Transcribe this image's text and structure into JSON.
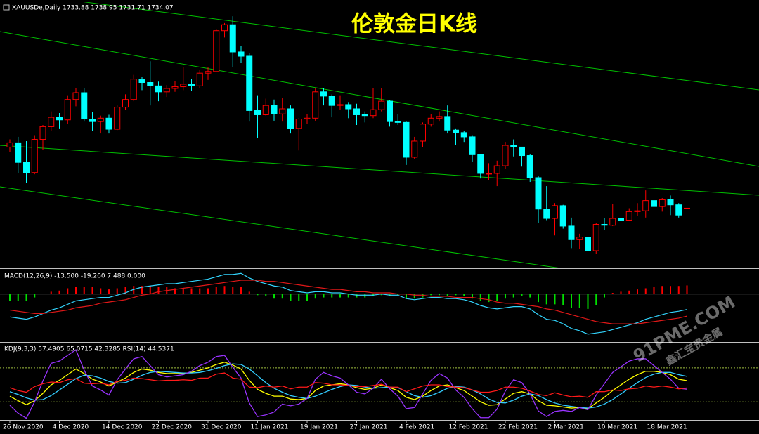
{
  "chart_data": [
    {
      "type": "candlestick",
      "title": "伦敦金日K线",
      "label": "XAUUSDe,Daily  1733.88 1738.95 1731.71 1734.07",
      "categories": [
        "26 Nov 2020",
        null,
        null,
        null,
        null,
        null,
        "4 Dec 2020",
        null,
        null,
        null,
        null,
        null,
        "14 Dec 2020",
        null,
        null,
        null,
        null,
        null,
        "22 Dec 2020",
        null,
        null,
        null,
        null,
        null,
        "31 Dec 2020",
        null,
        null,
        null,
        null,
        null,
        "11 Jan 2021",
        null,
        null,
        null,
        null,
        null,
        "19 Jan 2021",
        null,
        null,
        null,
        null,
        null,
        "27 Jan 2021",
        null,
        null,
        null,
        null,
        null,
        "4 Feb 2021",
        null,
        null,
        null,
        null,
        null,
        "12 Feb 2021",
        null,
        null,
        null,
        null,
        null,
        "22 Feb 2021",
        null,
        null,
        null,
        null,
        null,
        "2 Mar 2021",
        null,
        null,
        null,
        null,
        null,
        "10 Mar 2021",
        null,
        null,
        null,
        null,
        null,
        "18 Mar 2021",
        null,
        null,
        null,
        null
      ],
      "open": [
        1806,
        1811,
        1788,
        1776,
        1815,
        1830,
        1841,
        1838,
        1862,
        1870,
        1839,
        1836,
        1840,
        1827,
        1853,
        1862,
        1886,
        1882,
        1878,
        1871,
        1875,
        1877,
        1880,
        1878,
        1893,
        1895,
        1943,
        1950,
        1918,
        1913,
        1849,
        1844,
        1855,
        1845,
        1851,
        1828,
        1839,
        1840,
        1871,
        1866,
        1855,
        1856,
        1851,
        1844,
        1843,
        1850,
        1860,
        1836,
        1835,
        1794,
        1813,
        1833,
        1840,
        1842,
        1826,
        1823,
        1818,
        1797,
        1775,
        1775,
        1784,
        1808,
        1806,
        1796,
        1770,
        1733,
        1722,
        1737,
        1713,
        1697,
        1700,
        1684,
        1715,
        1714,
        1722,
        1720,
        1730,
        1731,
        1743,
        1736,
        1744,
        1738,
        1733.88
      ],
      "high": [
        1815,
        1818,
        1813,
        1820,
        1832,
        1848,
        1846,
        1867,
        1875,
        1875,
        1847,
        1843,
        1844,
        1855,
        1868,
        1891,
        1889,
        1907,
        1883,
        1879,
        1884,
        1900,
        1886,
        1897,
        1900,
        1945,
        1952,
        1960,
        1925,
        1917,
        1867,
        1863,
        1862,
        1864,
        1855,
        1840,
        1845,
        1875,
        1875,
        1868,
        1867,
        1859,
        1857,
        1848,
        1875,
        1875,
        1861,
        1845,
        1836,
        1818,
        1835,
        1845,
        1848,
        1855,
        1828,
        1825,
        1820,
        1798,
        1787,
        1790,
        1812,
        1815,
        1806,
        1798,
        1772,
        1760,
        1740,
        1738,
        1723,
        1704,
        1704,
        1717,
        1722,
        1739,
        1729,
        1734,
        1740,
        1755,
        1746,
        1746,
        1749,
        1740,
        1738.95
      ],
      "low": [
        1800,
        1775,
        1764,
        1774,
        1803,
        1825,
        1828,
        1833,
        1854,
        1836,
        1825,
        1822,
        1822,
        1826,
        1850,
        1860,
        1873,
        1855,
        1860,
        1865,
        1871,
        1873,
        1872,
        1875,
        1885,
        1895,
        1935,
        1900,
        1905,
        1836,
        1817,
        1843,
        1837,
        1836,
        1822,
        1802,
        1833,
        1837,
        1855,
        1841,
        1850,
        1840,
        1832,
        1835,
        1840,
        1848,
        1830,
        1832,
        1785,
        1792,
        1806,
        1830,
        1836,
        1822,
        1808,
        1812,
        1789,
        1769,
        1767,
        1760,
        1780,
        1795,
        1783,
        1765,
        1717,
        1720,
        1702,
        1710,
        1687,
        1686,
        1676,
        1680,
        1708,
        1713,
        1699,
        1719,
        1725,
        1723,
        1730,
        1730,
        1726,
        1723,
        1731.71
      ],
      "close": [
        1811,
        1788,
        1776,
        1815,
        1830,
        1841,
        1838,
        1862,
        1870,
        1839,
        1836,
        1840,
        1827,
        1853,
        1862,
        1886,
        1882,
        1878,
        1871,
        1875,
        1877,
        1880,
        1878,
        1893,
        1895,
        1943,
        1950,
        1918,
        1913,
        1849,
        1844,
        1855,
        1845,
        1851,
        1828,
        1839,
        1840,
        1871,
        1866,
        1855,
        1856,
        1851,
        1844,
        1843,
        1850,
        1860,
        1836,
        1835,
        1794,
        1813,
        1833,
        1840,
        1842,
        1826,
        1823,
        1818,
        1797,
        1775,
        1775,
        1784,
        1808,
        1806,
        1796,
        1770,
        1733,
        1722,
        1737,
        1713,
        1697,
        1700,
        1684,
        1715,
        1714,
        1722,
        1720,
        1730,
        1731,
        1743,
        1736,
        1744,
        1738,
        1726,
        1734.07
      ],
      "ylim": [
        1665,
        1975
      ],
      "colors": {
        "up": "#ff0000",
        "down": "#00ffff"
      }
    },
    {
      "type": "macd",
      "label": "MACD(12,26,9) -13.500 -19.260 7.488 0.000",
      "ylim": [
        -40,
        20
      ],
      "series": [
        {
          "style": "histogram",
          "colors": {
            "up": "#ff0000",
            "down": "#00e000"
          },
          "values": [
            -6,
            -6,
            -6,
            -3,
            0,
            2,
            3,
            5,
            6,
            6,
            6,
            5,
            4,
            5,
            6,
            7,
            7,
            7,
            6,
            6,
            5,
            5,
            5,
            5,
            5,
            6,
            7,
            6,
            6,
            2,
            -1,
            -2,
            -4,
            -4,
            -6,
            -6,
            -6,
            -4,
            -3,
            -3,
            -3,
            -3,
            -3,
            -3,
            -2,
            -1,
            -2,
            -1,
            -4,
            -4,
            -3,
            -1,
            -1,
            -2,
            -1,
            -2,
            -4,
            -6,
            -7,
            -6,
            -4,
            -3,
            -2,
            -3,
            -7,
            -9,
            -9,
            -10,
            -12,
            -12,
            -13,
            -10,
            -3,
            1,
            2,
            3,
            4,
            5,
            6,
            7,
            7,
            7,
            7.488
          ]
        },
        {
          "style": "line",
          "color": "#33d6ff",
          "values": [
            -20,
            -21,
            -22,
            -20,
            -17,
            -14,
            -12,
            -9,
            -6,
            -5,
            -4,
            -3,
            -3,
            -1,
            1,
            4,
            6,
            7,
            8,
            9,
            9,
            10,
            11,
            12,
            13,
            15,
            17,
            17,
            18,
            14,
            11,
            9,
            7,
            6,
            3,
            2,
            1,
            2,
            2,
            1,
            1,
            0,
            -1,
            -1,
            -1,
            0,
            -1,
            -1,
            -4,
            -5,
            -4,
            -3,
            -3,
            -4,
            -4,
            -5,
            -7,
            -10,
            -12,
            -13,
            -12,
            -11,
            -11,
            -13,
            -18,
            -22,
            -23,
            -26,
            -30,
            -32,
            -35,
            -34,
            -33,
            -31,
            -29,
            -27,
            -25,
            -22,
            -20,
            -18,
            -16,
            -15,
            -13.5
          ]
        },
        {
          "style": "line",
          "color": "#e01818",
          "values": [
            -14,
            -15,
            -16,
            -17,
            -17,
            -16,
            -15,
            -14,
            -12,
            -11,
            -10,
            -8,
            -7,
            -6,
            -5,
            -3,
            -1,
            0,
            2,
            3,
            4,
            5,
            6,
            7,
            8,
            9,
            10,
            11,
            12,
            12,
            12,
            11,
            11,
            10,
            9,
            8,
            7,
            6,
            5,
            4,
            4,
            3,
            2,
            2,
            1,
            1,
            1,
            0,
            0,
            -1,
            -1,
            -2,
            -2,
            -2,
            -3,
            -3,
            -3,
            -4,
            -5,
            -7,
            -8,
            -8,
            -9,
            -10,
            -11,
            -13,
            -14,
            -16,
            -18,
            -20,
            -22,
            -24,
            -25,
            -26,
            -26,
            -26,
            -26,
            -25,
            -24,
            -23,
            -22,
            -21,
            -19.26
          ]
        }
      ]
    },
    {
      "type": "line",
      "label": "KDJ(9,3,3) 57.4905 65.0715 42.3285  RSI(14) 44.5371",
      "ylim": [
        -12,
        122
      ],
      "levels": [
        20,
        80
      ],
      "series": [
        {
          "color": "#ffff00",
          "values": [
            30,
            22,
            15,
            22,
            35,
            50,
            58,
            68,
            78,
            70,
            60,
            55,
            48,
            55,
            62,
            72,
            78,
            76,
            72,
            70,
            70,
            70,
            72,
            76,
            80,
            86,
            90,
            85,
            78,
            58,
            42,
            35,
            30,
            30,
            25,
            24,
            26,
            40,
            48,
            50,
            52,
            50,
            45,
            42,
            44,
            50,
            45,
            40,
            28,
            24,
            30,
            40,
            48,
            50,
            45,
            40,
            30,
            20,
            14,
            15,
            25,
            35,
            38,
            34,
            22,
            14,
            13,
            11,
            9,
            10,
            8,
            18,
            28,
            40,
            50,
            60,
            68,
            74,
            74,
            72,
            68,
            60,
            57.4905
          ]
        },
        {
          "color": "#33ccff",
          "values": [
            38,
            33,
            27,
            23,
            24,
            31,
            41,
            51,
            61,
            67,
            66,
            62,
            56,
            53,
            54,
            60,
            67,
            72,
            74,
            73,
            72,
            71,
            71,
            72,
            75,
            79,
            84,
            87,
            86,
            78,
            66,
            54,
            44,
            37,
            31,
            28,
            26,
            30,
            36,
            42,
            47,
            50,
            49,
            46,
            44,
            45,
            46,
            45,
            38,
            31,
            28,
            31,
            37,
            44,
            47,
            46,
            41,
            34,
            25,
            19,
            18,
            23,
            30,
            34,
            31,
            24,
            18,
            14,
            12,
            10,
            9,
            11,
            16,
            24,
            34,
            44,
            54,
            63,
            69,
            72,
            72,
            68,
            65.0715
          ]
        },
        {
          "color": "#9933ff",
          "values": [
            14,
            0,
            -9,
            20,
            57,
            88,
            92,
            102,
            112,
            76,
            48,
            41,
            32,
            59,
            78,
            96,
            100,
            84,
            68,
            64,
            66,
            68,
            74,
            84,
            90,
            100,
            102,
            81,
            62,
            18,
            -6,
            -3,
            2,
            16,
            13,
            16,
            26,
            60,
            72,
            66,
            62,
            50,
            37,
            34,
            44,
            60,
            43,
            30,
            8,
            10,
            34,
            58,
            70,
            62,
            41,
            28,
            8,
            -8,
            -8,
            7,
            39,
            59,
            54,
            34,
            4,
            -6,
            3,
            5,
            3,
            10,
            6,
            32,
            52,
            72,
            82,
            92,
            96,
            96,
            84,
            72,
            60,
            44,
            42.3285
          ]
        },
        {
          "color": "#ff1a1a",
          "values": [
            45,
            40,
            37,
            47,
            52,
            55,
            54,
            59,
            61,
            53,
            52,
            53,
            50,
            56,
            58,
            62,
            61,
            59,
            57,
            58,
            58,
            59,
            58,
            62,
            62,
            69,
            71,
            62,
            60,
            46,
            45,
            48,
            46,
            48,
            43,
            46,
            46,
            54,
            53,
            50,
            50,
            49,
            47,
            47,
            49,
            51,
            46,
            46,
            38,
            43,
            48,
            50,
            50,
            47,
            46,
            45,
            41,
            37,
            37,
            40,
            46,
            46,
            44,
            39,
            33,
            31,
            36,
            32,
            29,
            30,
            28,
            38,
            38,
            41,
            40,
            43,
            44,
            48,
            46,
            48,
            46,
            43,
            44.5371
          ]
        }
      ]
    }
  ],
  "watermark": [
    "91PME.COM",
    "鑫汇宝贵金属"
  ]
}
